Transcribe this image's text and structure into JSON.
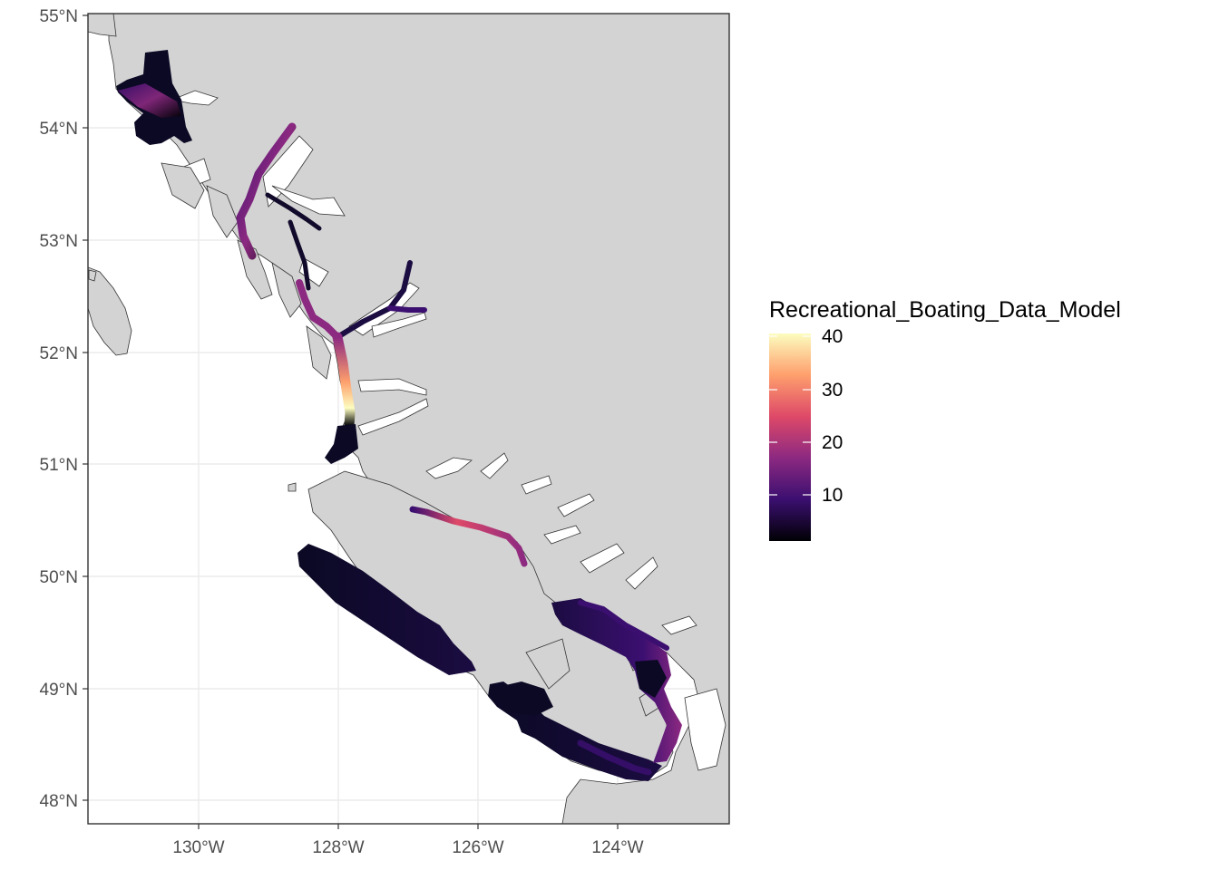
{
  "map": {
    "longitude_ticks": [
      "130°W",
      "128°W",
      "126°W",
      "124°W"
    ],
    "latitude_ticks": [
      "55°N",
      "54°N",
      "53°N",
      "52°N",
      "51°N",
      "50°N",
      "49°N",
      "48°N"
    ],
    "land_color": "#d3d3d3",
    "water_color": "#ffffff",
    "grid_color": "#ebebeb",
    "border_color": "#333333"
  },
  "legend": {
    "title": "Recreational_Boating_Data_Model",
    "ticks": [
      "40",
      "30",
      "20",
      "10"
    ],
    "colors": [
      "#000004",
      "#3b0f70",
      "#8c2981",
      "#de4968",
      "#fe9f6d",
      "#fcfdbf"
    ]
  }
}
